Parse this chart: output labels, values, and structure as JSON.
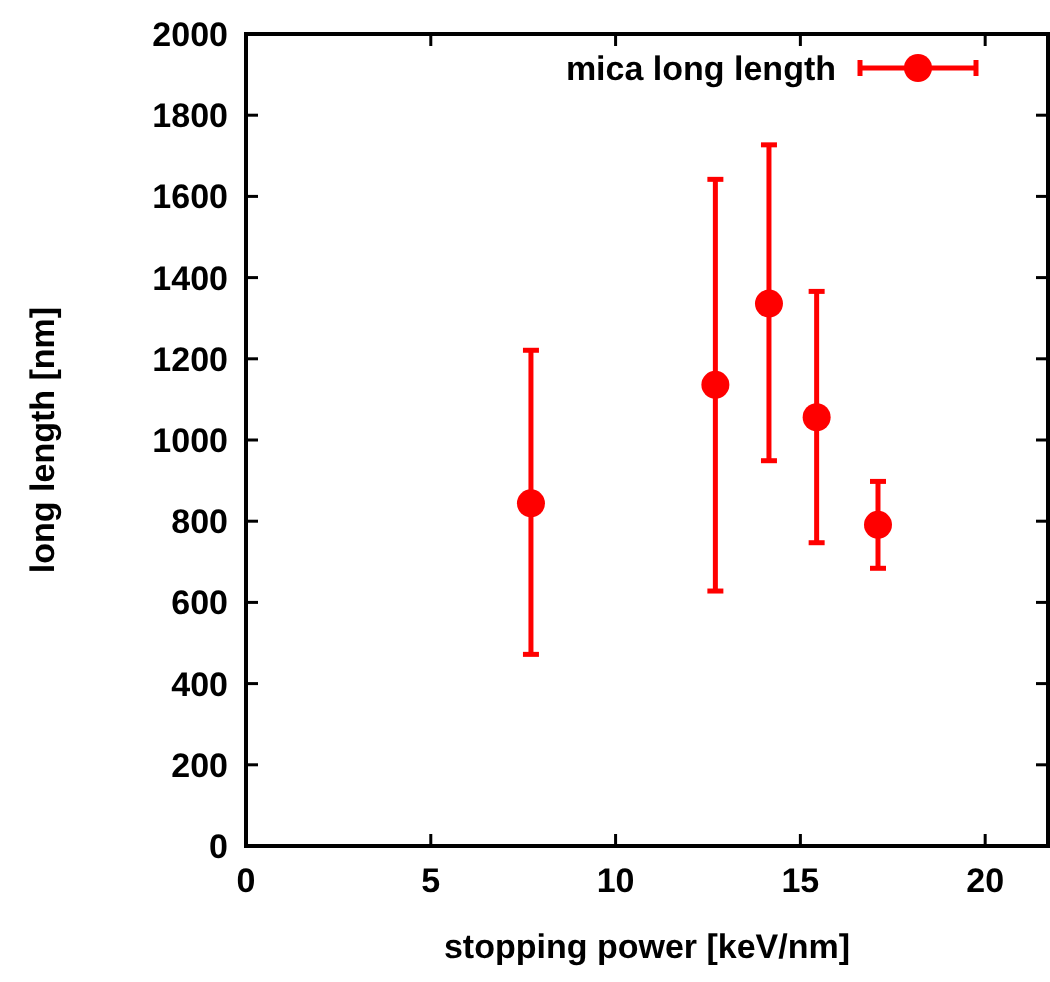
{
  "chart_data": {
    "type": "scatter",
    "xlabel": "stopping power [keV/nm]",
    "ylabel": "long length [nm]",
    "xlim": [
      0,
      21.7
    ],
    "xticks": [
      0,
      5,
      10,
      15,
      20
    ],
    "ylim": [
      0,
      2000
    ],
    "yticks": [
      0,
      200,
      400,
      600,
      800,
      1000,
      1200,
      1400,
      1600,
      1800,
      2000
    ],
    "marker": "circle",
    "legend": "top right",
    "grid": false,
    "series": [
      {
        "name": "mica long length",
        "color": "#ff0000",
        "x": [
          7.71,
          12.7,
          14.15,
          15.44,
          17.1
        ],
        "values": [
          844,
          1136,
          1336,
          1056,
          791
        ],
        "errors": [
          [
            472,
            1221
          ],
          [
            628,
            1642
          ],
          [
            949,
            1727
          ],
          [
            747,
            1366
          ],
          [
            684,
            898
          ]
        ]
      }
    ]
  }
}
